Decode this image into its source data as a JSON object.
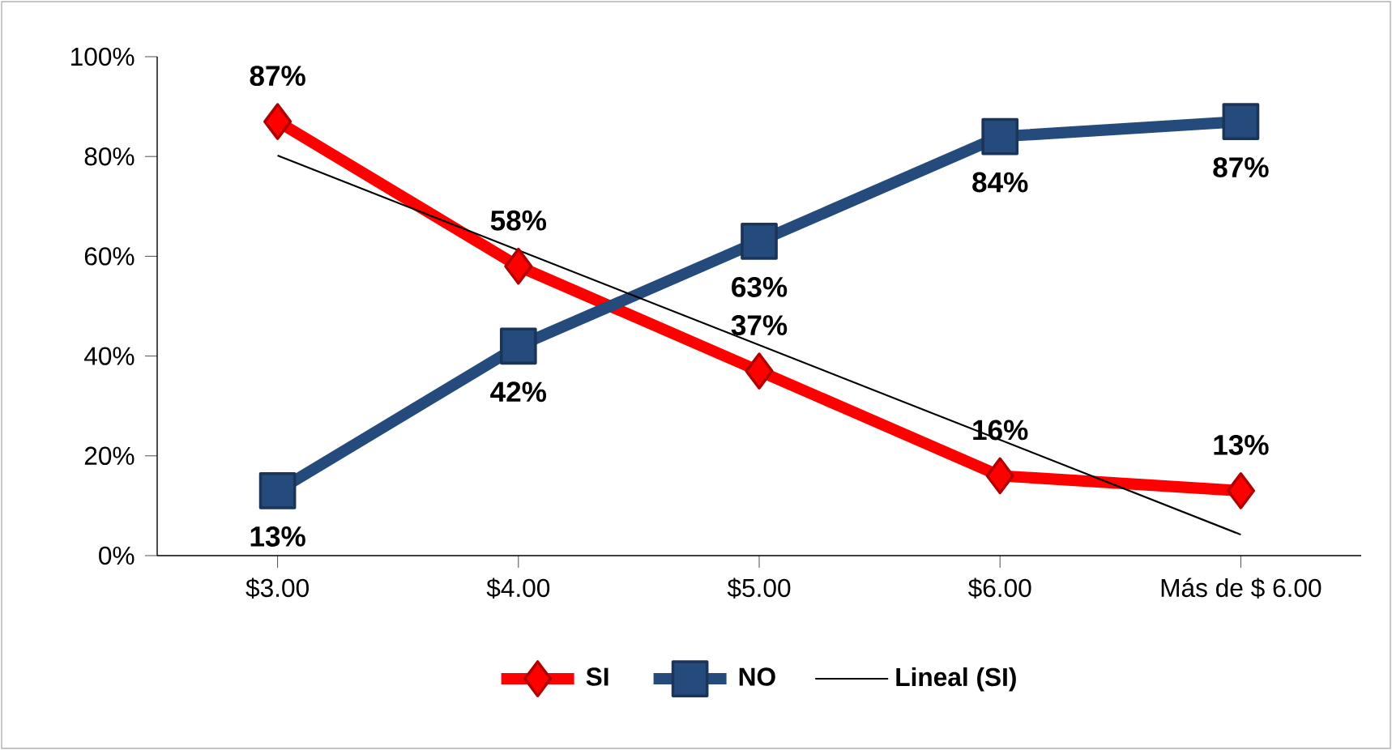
{
  "chart_data": {
    "type": "line",
    "categories": [
      "$3.00",
      "$4.00",
      "$5.00",
      "$6.00",
      "Más de $ 6.00"
    ],
    "series": [
      {
        "name": "SI",
        "color": "#ff0000",
        "marker": "diamond",
        "values": [
          87,
          58,
          37,
          16,
          13
        ],
        "value_labels": [
          "87%",
          "58%",
          "37%",
          "16%",
          "13%"
        ]
      },
      {
        "name": "NO",
        "color": "#254b7c",
        "marker": "square",
        "values": [
          13,
          42,
          63,
          84,
          87
        ],
        "value_labels": [
          "13%",
          "42%",
          "63%",
          "84%",
          "87%"
        ]
      },
      {
        "name": "Lineal (SI)",
        "color": "#000000",
        "marker": "none",
        "x": [
          "$3.00",
          "Más de $ 6.00"
        ],
        "values": [
          80.2,
          4.2
        ]
      }
    ],
    "ylim": [
      0,
      100
    ],
    "yticks": [
      {
        "value": 0,
        "label": "0%"
      },
      {
        "value": 20,
        "label": "20%"
      },
      {
        "value": 40,
        "label": "40%"
      },
      {
        "value": 60,
        "label": "60%"
      },
      {
        "value": 80,
        "label": "80%"
      },
      {
        "value": 100,
        "label": "100%"
      }
    ],
    "grid": false,
    "legend": "bottom"
  }
}
